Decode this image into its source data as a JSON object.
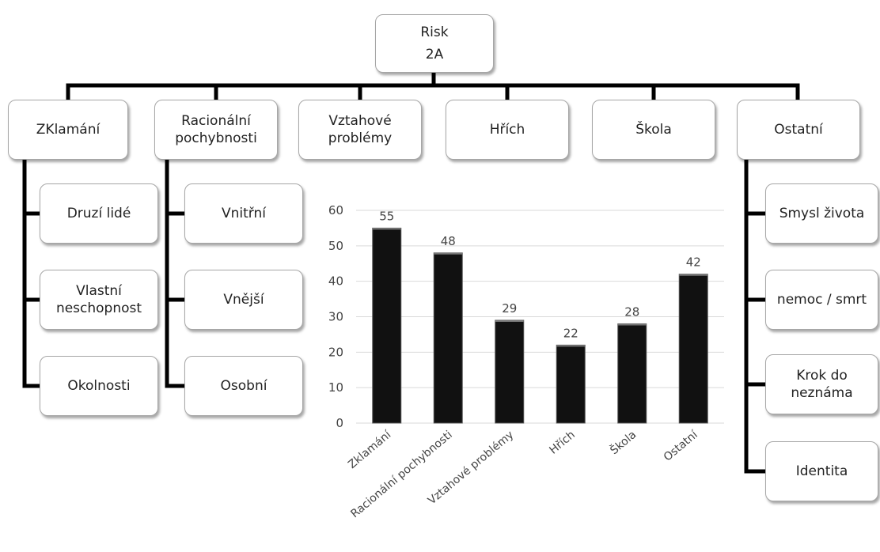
{
  "root": {
    "title": "Risk",
    "subtitle": "2A"
  },
  "categories": [
    {
      "id": "zklamani",
      "label_lines": [
        "ZKlamání"
      ]
    },
    {
      "id": "racionalni",
      "label_lines": [
        "Racionální",
        "pochybnosti"
      ]
    },
    {
      "id": "vztahove",
      "label_lines": [
        "Vztahové",
        "problémy"
      ]
    },
    {
      "id": "hrich",
      "label_lines": [
        "Hřích"
      ]
    },
    {
      "id": "skola",
      "label_lines": [
        "Škola"
      ]
    },
    {
      "id": "ostatni",
      "label_lines": [
        "Ostatní"
      ]
    }
  ],
  "sub_items": {
    "zklamani": [
      [
        "Druzí lidé"
      ],
      [
        "Vlastní",
        "neschopnost"
      ],
      [
        "Okolnosti"
      ]
    ],
    "racionalni": [
      [
        "Vnitřní"
      ],
      [
        "Vnější"
      ],
      [
        "Osobní"
      ]
    ],
    "ostatni": [
      [
        "Smysl života"
      ],
      [
        "nemoc / smrt"
      ],
      [
        "Krok do",
        "neznáma"
      ],
      [
        "Identita"
      ]
    ]
  },
  "colors": {
    "bar": "#111111",
    "line": "#000000",
    "box_border": "#a6a6a6",
    "grid": "#d9d9d9"
  },
  "chart_data": {
    "type": "bar",
    "categories": [
      "Zklamání",
      "Racionální pochybnosti",
      "Vztahové problémy",
      "Hřích",
      "Škola",
      "Ostatní"
    ],
    "values": [
      55,
      48,
      29,
      22,
      28,
      42
    ],
    "ylim": [
      0,
      60
    ],
    "yticks": [
      0,
      10,
      20,
      30,
      40,
      50,
      60
    ],
    "data_labels": true,
    "grid": true,
    "title": "",
    "xlabel": "",
    "ylabel": ""
  }
}
